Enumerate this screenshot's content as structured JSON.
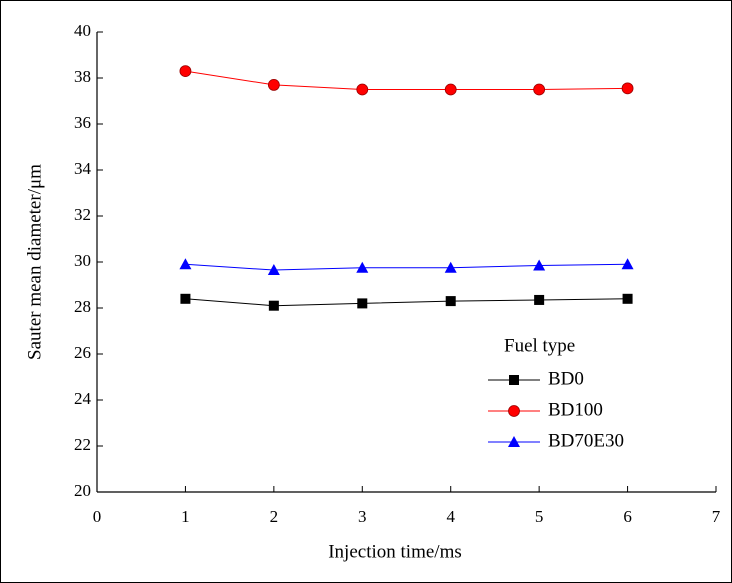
{
  "chart_data": {
    "type": "line",
    "x_label": "Injection time/ms",
    "y_label": "Sauter mean diameter/μm",
    "x": [
      1,
      2,
      3,
      4,
      5,
      6
    ],
    "series": [
      {
        "name": "BD0",
        "color": "#000000",
        "marker": "square",
        "values": [
          28.4,
          28.1,
          28.2,
          28.3,
          28.35,
          28.4
        ]
      },
      {
        "name": "BD100",
        "color": "#ff0000",
        "marker": "circle",
        "values": [
          38.3,
          37.7,
          37.5,
          37.5,
          37.5,
          37.55
        ]
      },
      {
        "name": "BD70E30",
        "color": "#0000ff",
        "marker": "triangle",
        "values": [
          29.9,
          29.65,
          29.75,
          29.75,
          29.85,
          29.9
        ]
      }
    ],
    "xlim": [
      0,
      7
    ],
    "xticks": [
      0,
      1,
      2,
      3,
      4,
      5,
      6,
      7
    ],
    "ylim": [
      20,
      40
    ],
    "yticks": [
      20,
      22,
      24,
      26,
      28,
      30,
      32,
      34,
      36,
      38,
      40
    ],
    "legend_title": "Fuel type",
    "legend": "lower right",
    "grid": false
  }
}
